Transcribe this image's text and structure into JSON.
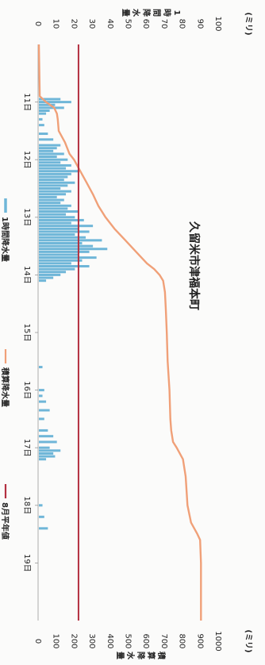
{
  "chart_data": {
    "type": "bar+line",
    "title": "久留米市津福本町",
    "left_axis": {
      "unit": "(ミリ)",
      "label_chars": [
        "1",
        "時",
        "間",
        "降",
        "水",
        "量"
      ],
      "ticks": [
        0,
        10,
        20,
        30,
        40,
        50,
        60,
        70,
        80,
        90,
        100
      ],
      "range": [
        0,
        100
      ]
    },
    "right_axis": {
      "unit": "(ミリ)",
      "label_chars": [
        "積",
        "算",
        "降",
        "水",
        "量"
      ],
      "ticks": [
        0,
        100,
        200,
        300,
        400,
        500,
        600,
        700,
        800,
        900,
        1000
      ],
      "range": [
        0,
        1000
      ]
    },
    "x_ticks": [
      "11日",
      "12日",
      "13日",
      "14日",
      "15日",
      "16日",
      "17日",
      "18日",
      "19日"
    ],
    "x_range": [
      10.0,
      20.0
    ],
    "series": [
      {
        "name": "1時間降水量",
        "kind": "bar",
        "color": "#6fb6d8",
        "x": [
          10.95,
          11.0,
          11.05,
          11.1,
          11.15,
          11.2,
          11.3,
          11.4,
          11.55,
          11.65,
          11.75,
          11.8,
          11.85,
          11.9,
          11.95,
          12.0,
          12.05,
          12.1,
          12.15,
          12.2,
          12.25,
          12.3,
          12.35,
          12.4,
          12.45,
          12.5,
          12.55,
          12.6,
          12.65,
          12.7,
          12.75,
          12.8,
          12.85,
          12.9,
          12.95,
          13.0,
          13.05,
          13.1,
          13.15,
          13.2,
          13.25,
          13.3,
          13.35,
          13.4,
          13.45,
          13.5,
          13.55,
          13.6,
          13.65,
          13.7,
          13.75,
          13.8,
          13.85,
          13.9,
          13.95,
          14.0,
          14.05,
          14.1,
          15.6,
          16.0,
          16.1,
          16.2,
          16.35,
          16.5,
          16.7,
          16.8,
          16.9,
          17.0,
          17.05,
          17.1,
          17.15,
          17.2,
          18.0,
          18.2,
          18.4
        ],
        "values": [
          12,
          18,
          9,
          14,
          6,
          4,
          2,
          3,
          5,
          8,
          12,
          10,
          8,
          14,
          10,
          16,
          12,
          18,
          15,
          22,
          18,
          16,
          14,
          20,
          16,
          12,
          18,
          15,
          10,
          14,
          12,
          18,
          16,
          22,
          15,
          20,
          25,
          18,
          30,
          22,
          28,
          20,
          26,
          35,
          24,
          30,
          38,
          28,
          22,
          32,
          24,
          18,
          28,
          20,
          15,
          12,
          8,
          4,
          2,
          3,
          2,
          4,
          6,
          3,
          5,
          8,
          10,
          6,
          12,
          8,
          9,
          4,
          2,
          3,
          5
        ]
      },
      {
        "name": "積算降水量",
        "kind": "line",
        "axis": "right",
        "color": "#f0a078",
        "x": [
          10.0,
          10.9,
          11.0,
          11.1,
          11.2,
          11.3,
          11.5,
          11.7,
          11.9,
          12.0,
          12.2,
          12.4,
          12.6,
          12.8,
          13.0,
          13.2,
          13.4,
          13.6,
          13.8,
          13.9,
          14.0,
          14.1,
          14.3,
          14.6,
          15.0,
          15.5,
          16.0,
          16.5,
          16.7,
          16.9,
          17.0,
          17.2,
          17.5,
          18.0,
          18.3,
          18.5,
          18.6,
          19.0,
          19.5,
          20.0
        ],
        "values": [
          0,
          5,
          40,
          85,
          100,
          105,
          110,
          145,
          170,
          195,
          230,
          265,
          300,
          330,
          370,
          420,
          480,
          540,
          600,
          640,
          670,
          690,
          700,
          705,
          710,
          715,
          725,
          730,
          735,
          745,
          765,
          800,
          815,
          825,
          845,
          880,
          895,
          900,
          900,
          900
        ]
      },
      {
        "name": "8月平年値",
        "kind": "hline",
        "axis": "right",
        "color": "#b33040",
        "value": 220
      }
    ],
    "legend_position": "bottom",
    "grid": false
  }
}
